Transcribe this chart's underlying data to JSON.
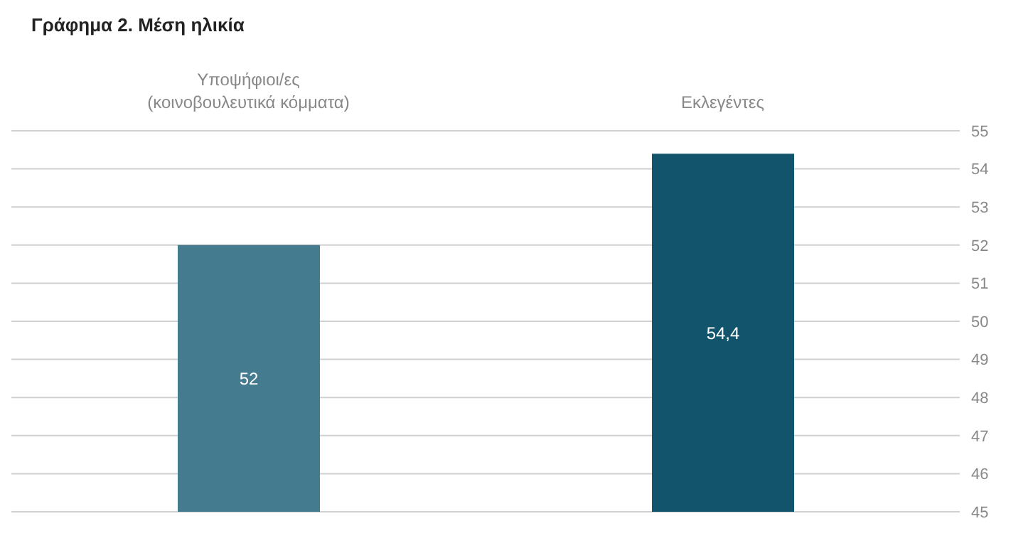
{
  "chart_data": {
    "type": "bar",
    "title": "Γράφημα 2. Μέση ηλικία",
    "categories": [
      "Υποψήφιοι/ες\n(κοινοβουλευτικά κόμματα)",
      "Εκλεγέντες"
    ],
    "values": [
      52,
      54.4
    ],
    "value_labels": [
      "52",
      "54,4"
    ],
    "colors": [
      "#457b8f",
      "#11546b"
    ],
    "ylim": [
      45,
      55
    ],
    "yticks": [
      45,
      46,
      47,
      48,
      49,
      50,
      51,
      52,
      53,
      54,
      55
    ],
    "grid": "y"
  }
}
